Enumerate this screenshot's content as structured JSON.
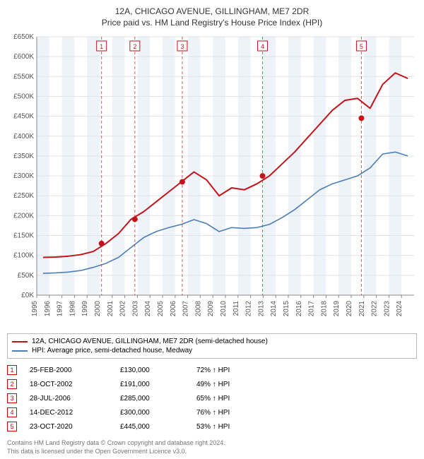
{
  "title": {
    "line1": "12A, CHICAGO AVENUE, GILLINGHAM, ME7 2DR",
    "line2": "Price paid vs. HM Land Registry's House Price Index (HPI)",
    "fontsize": 12
  },
  "chart": {
    "type": "line",
    "background_color": "#ffffff",
    "plot_bg_banding": {
      "color1": "#eef2f9",
      "color2": "#ffffff"
    },
    "grid_color": "#e3e3e3",
    "x_years": [
      1995,
      1996,
      1997,
      1998,
      1999,
      2000,
      2001,
      2002,
      2003,
      2004,
      2005,
      2006,
      2007,
      2008,
      2009,
      2010,
      2011,
      2012,
      2013,
      2014,
      2015,
      2016,
      2017,
      2018,
      2019,
      2020,
      2021,
      2022,
      2023,
      2024
    ],
    "x_tick_fontsize": 10,
    "y": {
      "min": 0,
      "max": 650000,
      "step": 50000,
      "prefix": "£",
      "suffix": "K",
      "divide": 1000,
      "fontsize": 10
    },
    "series": [
      {
        "name": "price_paid",
        "label": "12A, CHICAGO AVENUE, GILLINGHAM, ME7 2DR (semi-detached house)",
        "color": "#c2131a",
        "line_width": 2,
        "values_by_year": {
          "1995": 95000,
          "1996": 96000,
          "1997": 98000,
          "1998": 102000,
          "1999": 110000,
          "2000": 130000,
          "2001": 155000,
          "2002": 191000,
          "2003": 210000,
          "2004": 235000,
          "2005": 260000,
          "2006": 285000,
          "2007": 310000,
          "2008": 290000,
          "2009": 250000,
          "2010": 270000,
          "2011": 265000,
          "2012": 280000,
          "2013": 300000,
          "2014": 330000,
          "2015": 360000,
          "2016": 395000,
          "2017": 430000,
          "2018": 465000,
          "2019": 490000,
          "2020": 495000,
          "2021": 470000,
          "2022": 530000,
          "2023": 559000,
          "2024": 545000
        }
      },
      {
        "name": "hpi",
        "label": "HPI: Average price, semi-detached house, Medway",
        "color": "#4a7fb5",
        "line_width": 1.6,
        "values_by_year": {
          "1995": 55000,
          "1996": 56000,
          "1997": 58000,
          "1998": 62000,
          "1999": 70000,
          "2000": 80000,
          "2001": 95000,
          "2002": 120000,
          "2003": 145000,
          "2004": 160000,
          "2005": 170000,
          "2006": 178000,
          "2007": 190000,
          "2008": 180000,
          "2009": 160000,
          "2010": 170000,
          "2011": 168000,
          "2012": 170000,
          "2013": 178000,
          "2014": 195000,
          "2015": 215000,
          "2016": 240000,
          "2017": 265000,
          "2018": 280000,
          "2019": 290000,
          "2020": 300000,
          "2021": 320000,
          "2022": 355000,
          "2023": 360000,
          "2024": 350000
        }
      }
    ],
    "markers": [
      {
        "n": "1",
        "year": 2000.15,
        "y": 130000
      },
      {
        "n": "2",
        "year": 2002.8,
        "y": 191000
      },
      {
        "n": "3",
        "year": 2006.57,
        "y": 285000
      },
      {
        "n": "4",
        "year": 2012.95,
        "y": 300000
      },
      {
        "n": "5",
        "year": 2020.81,
        "y": 445000
      }
    ],
    "marker_style": {
      "color": "#c2131a",
      "dot_radius": 4,
      "box_size": 14,
      "dash": "4 3"
    }
  },
  "legend": [
    {
      "color": "#c2131a",
      "text": "12A, CHICAGO AVENUE, GILLINGHAM, ME7 2DR (semi-detached house)"
    },
    {
      "color": "#4a7fb5",
      "text": "HPI: Average price, semi-detached house, Medway"
    }
  ],
  "events": [
    {
      "n": "1",
      "date": "25-FEB-2000",
      "price": "£130,000",
      "hpi": "72% ↑ HPI"
    },
    {
      "n": "2",
      "date": "18-OCT-2002",
      "price": "£191,000",
      "hpi": "49% ↑ HPI"
    },
    {
      "n": "3",
      "date": "28-JUL-2006",
      "price": "£285,000",
      "hpi": "65% ↑ HPI"
    },
    {
      "n": "4",
      "date": "14-DEC-2012",
      "price": "£300,000",
      "hpi": "76% ↑ HPI"
    },
    {
      "n": "5",
      "date": "23-OCT-2020",
      "price": "£445,000",
      "hpi": "53% ↑ HPI"
    }
  ],
  "footer": {
    "line1": "Contains HM Land Registry data © Crown copyright and database right 2024.",
    "line2": "This data is licensed under the Open Government Licence v3.0."
  }
}
